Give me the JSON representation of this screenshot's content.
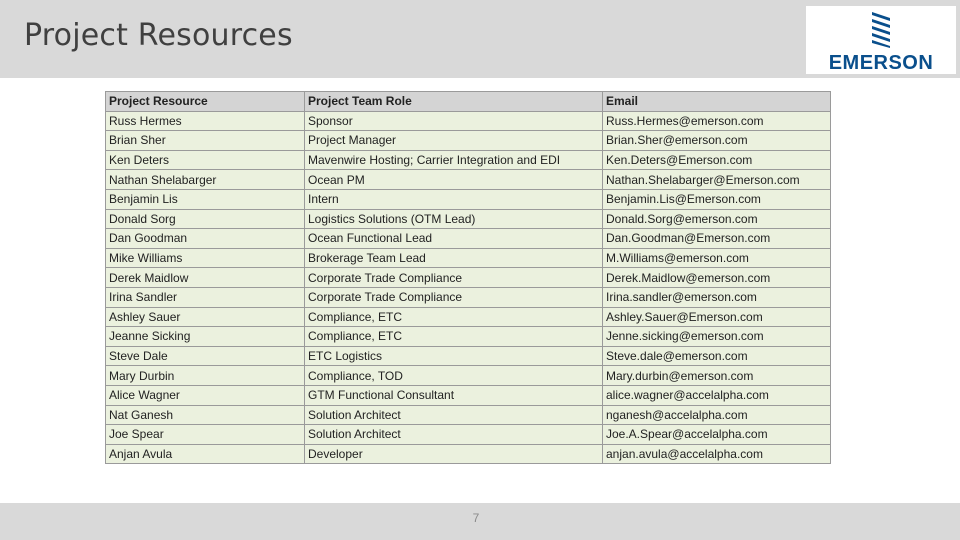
{
  "title": "Project Resources",
  "logo": {
    "text": "EMERSON",
    "color": "#0a4f8c"
  },
  "table": {
    "headers": [
      "Project Resource",
      "Project Team Role",
      "Email"
    ],
    "rows": [
      [
        "Russ Hermes",
        "Sponsor",
        "Russ.Hermes@emerson.com"
      ],
      [
        "Brian Sher",
        "Project Manager",
        "Brian.Sher@emerson.com"
      ],
      [
        "Ken Deters",
        "Mavenwire Hosting; Carrier Integration and EDI",
        "Ken.Deters@Emerson.com"
      ],
      [
        "Nathan Shelabarger",
        "Ocean PM",
        "Nathan.Shelabarger@Emerson.com"
      ],
      [
        "Benjamin Lis",
        "Intern",
        "Benjamin.Lis@Emerson.com"
      ],
      [
        "Donald Sorg",
        "Logistics Solutions (OTM Lead)",
        "Donald.Sorg@emerson.com"
      ],
      [
        "Dan Goodman",
        "Ocean Functional Lead",
        "Dan.Goodman@Emerson.com"
      ],
      [
        "Mike Williams",
        "Brokerage Team Lead",
        "M.Williams@emerson.com"
      ],
      [
        "Derek Maidlow",
        "Corporate Trade Compliance",
        "Derek.Maidlow@emerson.com"
      ],
      [
        "Irina Sandler",
        "Corporate Trade Compliance",
        "Irina.sandler@emerson.com"
      ],
      [
        "Ashley Sauer",
        "Compliance, ETC",
        "Ashley.Sauer@Emerson.com"
      ],
      [
        "Jeanne Sicking",
        "Compliance, ETC",
        "Jenne.sicking@emerson.com"
      ],
      [
        "Steve Dale",
        "ETC Logistics",
        "Steve.dale@emerson.com"
      ],
      [
        "Mary Durbin",
        "Compliance, TOD",
        "Mary.durbin@emerson.com"
      ],
      [
        "Alice Wagner",
        "GTM Functional Consultant",
        "alice.wagner@accelalpha.com"
      ],
      [
        "Nat Ganesh",
        "Solution Architect",
        "nganesh@accelalpha.com"
      ],
      [
        "Joe Spear",
        "Solution Architect",
        "Joe.A.Spear@accelalpha.com"
      ],
      [
        "Anjan Avula",
        "Developer",
        "anjan.avula@accelalpha.com"
      ]
    ]
  },
  "page_number": "7",
  "colors": {
    "bar": "#d9d9d9",
    "header_cell": "#d4d4d4",
    "row_cell": "#ebf1de"
  }
}
